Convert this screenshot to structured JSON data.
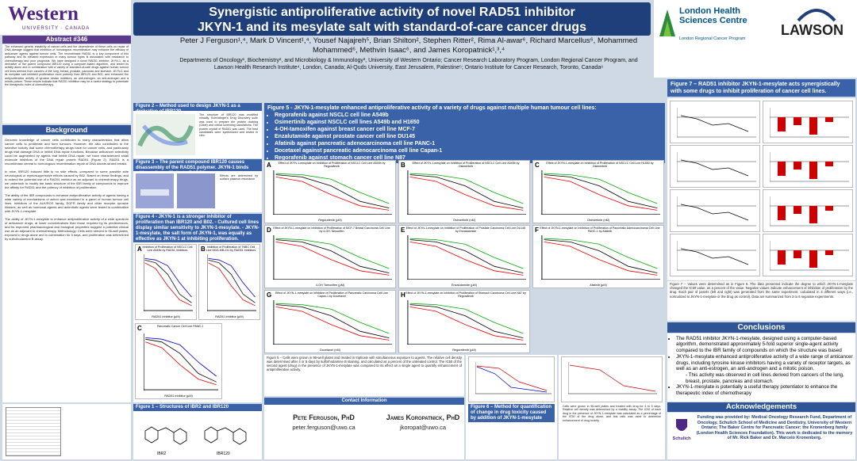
{
  "header": {
    "title": [
      "Synergistic antiproliferative activity of novel RAD51 inhibitor",
      "JKYN-1 and its mesylate salt with standard-of-care cancer drugs"
    ],
    "authors": "Peter J Ferguson¹,⁴, Mark D Vincent¹,⁴, Yousef Najajreh⁵, Brian Shilton², Stephen Ritter², Rima Al-awar⁶, Richard Marcellus⁶, Mohammed Mohammed⁶, Methvin Isaac⁶, and James Koropatnick¹,³,⁴",
    "affiliations": "Departments of Oncology¹, Biochemistry², and Microbiology & Immunology³, University of Western Ontario; Cancer Research Laboratory Program, London Regional Cancer Program, and Lawson Health Research Institute⁴, London, Canada; Al-Quds University, East Jerusalem, Palestine⁵; Ontario Institute for Cancer Research, Toronto, Canada⁶",
    "western": "Western",
    "western_sub": "UNIVERSITY · CANADA",
    "lhsc": "London Health Sciences Centre",
    "lhsc_sub": "London Regional Cancer Program",
    "lawson": "LAWSON"
  },
  "abstract": {
    "heading": "Abstract #346",
    "text": "The enhanced genetic instability of cancer cells and the dependence of these cells on repair of DNA damage suggest that inhibition of homologous recombination may enhance the efficacy of anticancer agents against tumour cells. The recombinase RAD51 is a key component of this pathway and its elevated expression in many tumour types is associated with resistance to chemotherapy and poor prognosis. We have designed a novel RAD51 inhibitor, JKYN-1, as a derivative of the parent compound IBR120 using a computer-based algorithm, and tested its activity alone and in combination with a variety of standard-of-care drugs against human tumour cell lines derived from cancers of the lung, breast, prostate, pancreas and stomach. JKYN-1 and its mesylate salt inhibited proliferation more potently than IBR120 and B02, and enhanced the antiproliferative activity of tyrosine kinase inhibitors, an anti-estrogen, an anti-androgen and a mitotic poison. These results indicate that RAD51 inhibition may be a useful strategy to potentiate the therapeutic index of chemotherapy."
  },
  "background": {
    "heading": "Background",
    "paragraphs": [
      "Genomic knowledge of cancer cells contributes to many characteristics that allow cancer cells to proliferate and form tumours. However, the also contributes to the selective toxicity that some chemotherapy drugs have for cancer cells, and particularly drugs that damage DNA or inhibit DNA repair functions. Because anticancer selectivity could be augmented by agents that inhibit DNA repair, we have characterized small molecule inhibitors of the DNA repair protein RAD51 (Figure 2). RAD51 is a recombinase central to homologous recombination repair of DNA double-strand breaks.",
      "In mice, IBR120 induced little to no side effects, compared to some possible side neurological or myelosuppressive effects caused by B02. Based on these findings, and to extend the potential use of a RAD51 inhibitor as an adjuvant to chemotherapy drugs, we undertook to modify the basic structure of the IBR family of compounds to improve the affinity for RAD51 and the potency of inhibition of proliferation.",
      "The ability of the IBR compounds to enhance antiproliferative activity of agents having a wide variety of mechanisms of action was examined in a panel of human tumour cell lines. Inhibitors of the ALK/ROS family, EGFR family and other receptor tyrosine kinases, as well as hormonal agents and antimitotic agents were tested in combination with JKYN-1-mesylate.",
      "The ability of JKYN-1-mesylate to enhance antiproliferative activity of a wide spectrum of anticancer drugs, at lower concentrations than those required by its predecessors, and its improved pharmacological and biological properties suggest a potential clinical use as an adjuvant to chemotherapy. Methodology: Cells were seeded in 96-well plates, exposed to drugs alone and in combination for 5 days, and proliferation was determined by sulforhodamine B assay."
    ]
  },
  "figure1": {
    "caption": "Figure 1 – Structures of IBR2 and IBR120",
    "labels": [
      "IBR2",
      "IBR120"
    ]
  },
  "figure2": {
    "caption": "Figure 2 – Method used to design JKYN-1 as a derivative of IBR120",
    "note": "The structure of IBR120 was modified virtually. Schrödinger's Drug Discovery suite was used to prepare the protein docking (Glide) and virtual screening calculations. The protein crystal of RAD51 was used. The best candidates were synthesized and tested in vitro."
  },
  "figure3": {
    "caption": "Figure 3 – The parent compound IBR120 causes disassembly of the RAD51 polymer. JKYN-1 binds with medium affinity to RAD51.",
    "note": "Effects are determined by surface plasmon resonance"
  },
  "figure4": {
    "caption": "Figure 4 - JKYN-1 is a stronger inhibitor of proliferation than IBR120 and B02. - Cultured cell lines display similar sensitivity to JKYN-1-mesylate. - JKYN-1-mesylate, the salt form of JKYN-1, was equally as effective as JKYN-1 at inhibiting proliferation.",
    "panels": [
      {
        "letter": "A",
        "title": "Inhibition of Proliferation of NSCLC Cell Line A549b by RAD51 Inhibitors",
        "xlabel": "RAD51 inhibitor (μM)"
      },
      {
        "letter": "B",
        "title": "Inhibition of Proliferation of TNBC Cell Line MDA-MB-231 by RAD51 Inhibitors",
        "xlabel": "RAD51 inhibitor (μM)"
      },
      {
        "letter": "C",
        "title": "Pancreatic Cancer Cell Line PANC-1",
        "xlabel": "RAD51 inhibitor (μM)"
      }
    ]
  },
  "figure5": {
    "caption": "Figure 5 - JKYN-1-mesylate enhanced antiproliferative activity of a variety of drugs against multiple human tumour cell lines:",
    "bullets": [
      "Regorafenib against NSCLC cell line A549b",
      "Osimertinib against NSCLC cell lines A549b and H1650",
      "4-OH-tamoxifen against breast cancer cell line MCF-7",
      "Enzalutamide against prostate cancer cell line DU145",
      "Afatinib against pancreatic adenocarcinoma cell line PANC-1",
      "Docetaxel against pancreatic adenocarcinoma cell line Capan-1",
      "Regorafenib against stomach cancer cell line N87"
    ],
    "panels": [
      {
        "letter": "A",
        "title": "Effect of JKYN-1-mesylate on Inhibition of Proliferation of NSCLC Cell Line A549b by Regorafenib",
        "xlabel": "Regorafenib (μM)"
      },
      {
        "letter": "B",
        "title": "Effect of JKYN-1-mesylate on Inhibition of Proliferation of NSCLC Cell Line A549b by Osimertinib",
        "xlabel": "Osimertinib (nM)"
      },
      {
        "letter": "C",
        "title": "Effect of JKYN-1-mesylate on Inhibition of Proliferation of NSCLC Cell Line H1650 by Osimertinib",
        "xlabel": "Osimertinib (nM)"
      },
      {
        "letter": "D",
        "title": "Effect of JKYN-1-mesylate on Inhibition of Proliferation of MCF-7 Breast Carcinoma Cell Line by 4-OH-Tamoxifen",
        "xlabel": "4-OH Tamoxifen (μM)"
      },
      {
        "letter": "E",
        "title": "Effect of JKYN-1-mesylate on Inhibition of Proliferation of Prostate Carcinoma Cell Line DU145 by Enzalutamide",
        "xlabel": "Enzalutamide (μM)"
      },
      {
        "letter": "F",
        "title": "Effect of JKYN-1-mesylate on Inhibition of Proliferation of Pancreatic Adenocarcinoma Cell Line PANC-1 by Afatinib",
        "xlabel": "Afatinib (μM)"
      },
      {
        "letter": "G",
        "title": "Effect of JKYN-1-mesylate on Inhibition of Proliferation of Pancreatic Carcinoma Cell Line Capan-1 by Docetaxel",
        "xlabel": "Docetaxel (nM)"
      },
      {
        "letter": "H",
        "title": "Effect of JKYN-1-mesylate on Inhibition of Proliferation of Stomach Carcinoma Cell Line N87 by Regorafenib",
        "xlabel": "Regorafenib (μM)"
      }
    ],
    "legend": "Figure 5 – Cells were grown in 96-well plates and treated in triplicate with simultaneous exposure to agents. The relative cell density was determined after 4 or 5 days by sulforhodamine B staining, and calculated as a percent of the untreated control. The IC50 of the second agent (drug) in the presence of JKYN-1-mesylate was compared to its effect as a single agent to quantify enhancement of antiproliferative activity."
  },
  "figure6": {
    "caption": "Figure 6 – Method for quantification of change in drug toxicity caused by addition of JKYN-1-mesylate",
    "text": "Cells were grown in 96-well plates and treated with drug for 4 to 5 days. Relative cell density was determined by a viability assay. The IC50 of each drug in the presence of JKYN-1-mesylate was calculated as a percentage of the IC50 of the drug alone, and this ratio was used to determine enhancement of drug toxicity."
  },
  "figure7": {
    "caption": "Figure 7 – RAD51 inhibitor JKYN-1-mesylate acts synergistically with some drugs to inhibit proliferation of cancer cell lines.",
    "text": "Figure 7 – Values were determined as in Figure 6. The data presented indicate the degree to which JKYN-1-mesylate changed the IC50 value, as a percent of the value. Negative values indicate enhancement of inhibition of proliferation by the drug. Each pair of panels (left and right) was generated from the same experiment, calculated in 3 different ways (i.e., normalized to JKYN-1-mesylate or the drug as control). Data are summarized from 3 to 6 separate experiments."
  },
  "conclusions": {
    "heading": "Conclusions",
    "bullets": [
      "The RAD51 inhibitor JKYN-1-mesylate, designed using a computer-based algorithm, demonstrated approximately 5-fold superior single-agent activity compared to the IBR family of compounds on which the structure was based",
      "JKYN-1-mesylate enhanced antiproliferative activity of a wide range of anticancer drugs, including tyrosine kinase inhibitors having a variety of receptor targets, as well as an anti-estrogen, an anti-androgen and a mitotic poison.",
      "- This activity was observed in cell lines derived from cancers of the lung, breast, prostate, pancreas and stomach.",
      "JKYN-1-mesylate is potentially a useful therapy potentiator to enhance the therapeutic index of chemotherapy"
    ]
  },
  "acknowledgements": {
    "heading": "Acknowledgements",
    "text": "Funding was provided by: Medical Oncology Research Fund, Department of Oncology, Schulich School of Medicine and Dentistry, University of Western Ontario; The Baker Centre for Pancreatic Cancer; the Kronenberg family (London Health Sciences Foundation). This work is dedicated to the memory of Mr. Rick Baker and Dr. Marcelo Kronenberg.",
    "logo": "Schulich"
  },
  "contact": {
    "heading": "Contact Information",
    "people": [
      {
        "name": "Pete Ferguson, PhD",
        "email": "peter.ferguson@uwo.ca"
      },
      {
        "name": "James Koropatnick, PhD",
        "email": "jkoropat@uwo.ca"
      }
    ]
  }
}
